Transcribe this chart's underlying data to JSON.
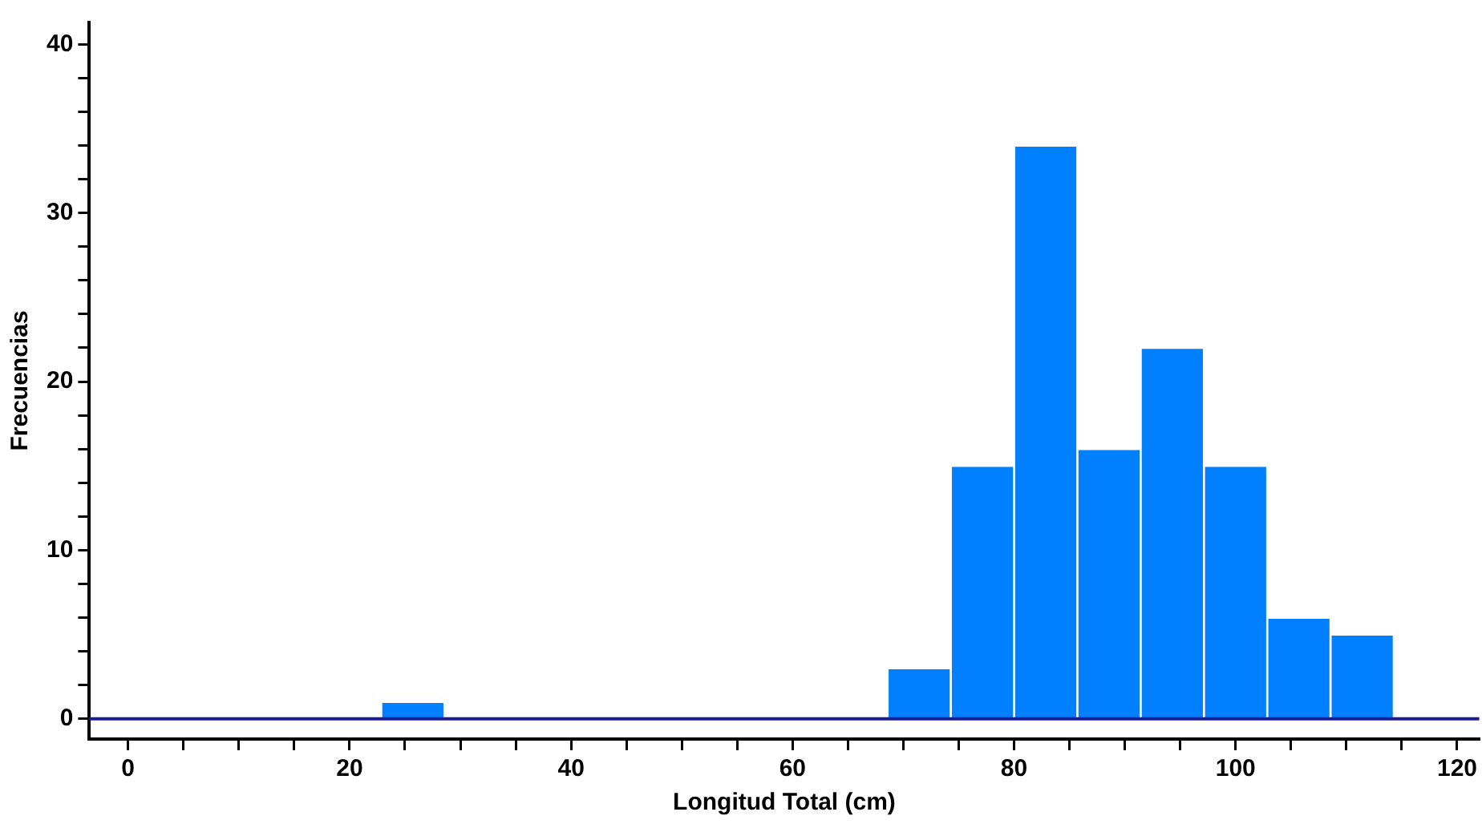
{
  "chart_data": {
    "type": "histogram",
    "xlabel": "Longitud Total (cm)",
    "ylabel": "Frecuencias",
    "bins": [
      0,
      5.714,
      11.429,
      17.143,
      22.857,
      28.571,
      34.286,
      40,
      45.714,
      51.429,
      57.143,
      62.857,
      68.571,
      74.286,
      80,
      85.714,
      91.429,
      97.143,
      102.857,
      108.571,
      114.286,
      120
    ],
    "values": [
      0,
      0,
      0,
      0,
      1,
      0,
      0,
      0,
      0,
      0,
      0,
      0,
      3,
      15,
      34,
      16,
      22,
      15,
      6,
      5,
      0
    ],
    "color": "#0080ff",
    "xlim": [
      -3.5,
      122
    ],
    "ylim": [
      -1.2,
      41.3
    ],
    "xticks": [
      0,
      {
        "value": 5,
        "label": null
      },
      {
        "value": 10,
        "label": null
      },
      {
        "value": 15,
        "label": null
      },
      20,
      {
        "value": 25,
        "label": null
      },
      {
        "value": 30,
        "label": null
      },
      {
        "value": 35,
        "label": null
      },
      40,
      {
        "value": 45,
        "label": null
      },
      {
        "value": 50,
        "label": null
      },
      {
        "value": 55,
        "label": null
      },
      60,
      {
        "value": 65,
        "label": null
      },
      {
        "value": 70,
        "label": null
      },
      {
        "value": 75,
        "label": null
      },
      80,
      {
        "value": 85,
        "label": null
      },
      {
        "value": 90,
        "label": null
      },
      {
        "value": 95,
        "label": null
      },
      100,
      {
        "value": 105,
        "label": null
      },
      {
        "value": 110,
        "label": null
      },
      {
        "value": 115,
        "label": null
      },
      120
    ],
    "yticks": [
      0,
      {
        "value": 2,
        "label": null
      },
      {
        "value": 4,
        "label": null
      },
      {
        "value": 6,
        "label": null
      },
      {
        "value": 8,
        "label": null
      },
      10,
      {
        "value": 12,
        "label": null
      },
      {
        "value": 14,
        "label": null
      },
      {
        "value": 16,
        "label": null
      },
      {
        "value": 18,
        "label": null
      },
      20,
      {
        "value": 22,
        "label": null
      },
      {
        "value": 24,
        "label": null
      },
      {
        "value": 26,
        "label": null
      },
      {
        "value": 28,
        "label": null
      },
      30,
      {
        "value": 32,
        "label": null
      },
      {
        "value": 34,
        "label": null
      },
      {
        "value": 36,
        "label": null
      },
      {
        "value": 38,
        "label": null
      },
      40
    ],
    "ref_lines": [
      {
        "axis": "y",
        "value": 0,
        "color": "#1a1a99"
      }
    ],
    "grid": false,
    "legend": false
  }
}
